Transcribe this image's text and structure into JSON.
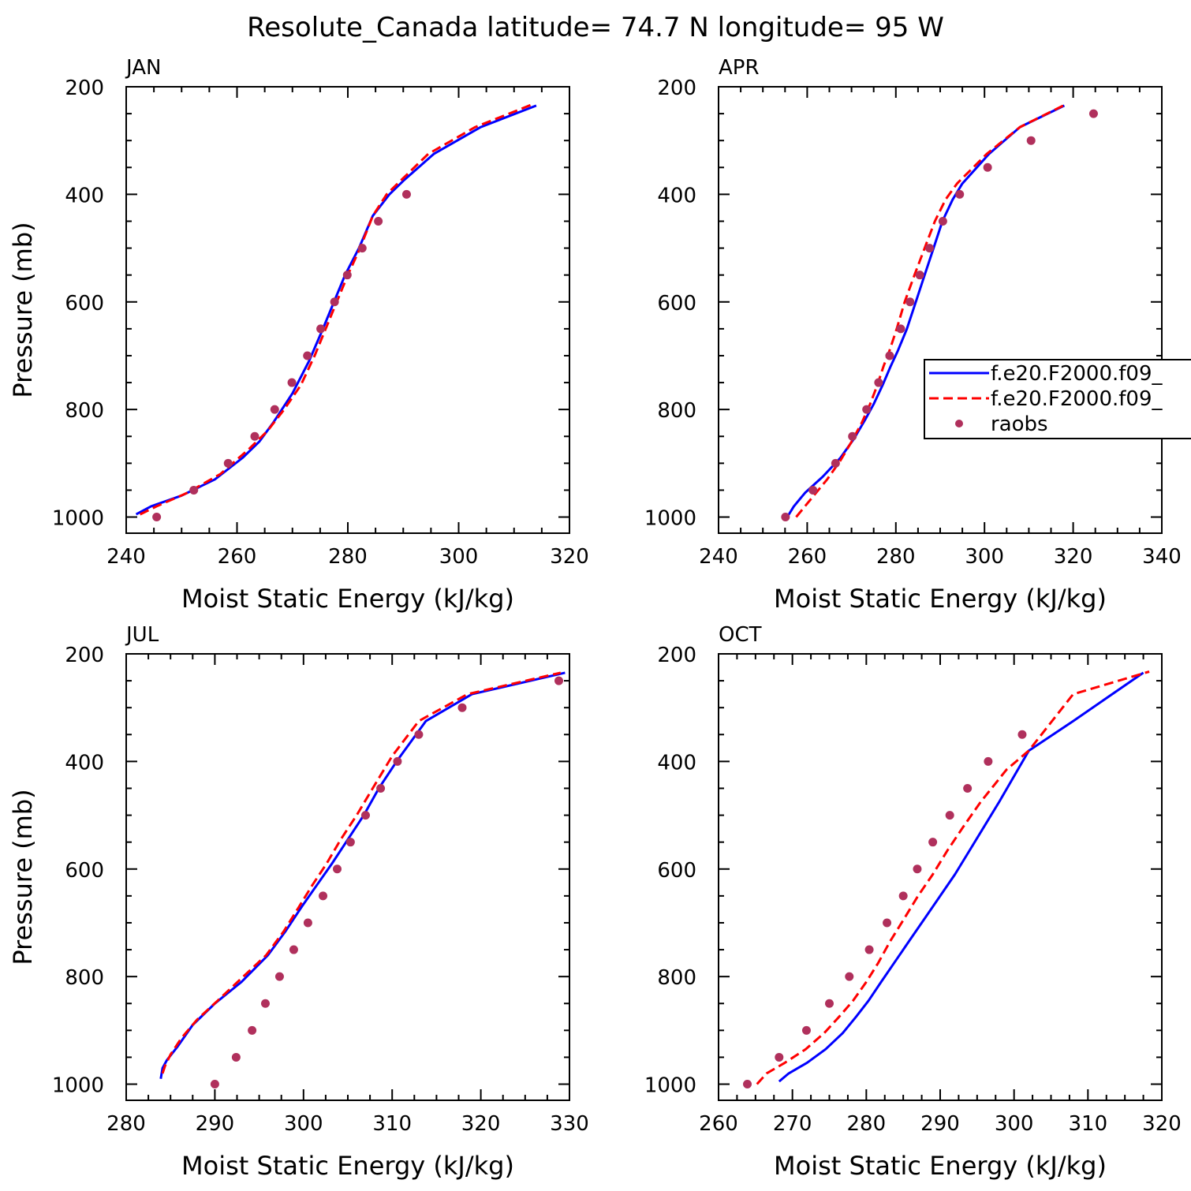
{
  "title": "Resolute_Canada  latitude= 74.7 N longitude= 95 W",
  "colors": {
    "model1": "#0000ff",
    "model2": "#ff0000",
    "raobs": "#b0305c"
  },
  "legend": {
    "entries": [
      {
        "label": "f.e20.F2000.f09_",
        "style": "solid",
        "color": "#0000ff"
      },
      {
        "label": "f.e20.F2000.f09_",
        "style": "dashed",
        "color": "#ff0000"
      },
      {
        "label": "raobs",
        "style": "marker",
        "color": "#b0305c"
      }
    ]
  },
  "chart_data": [
    {
      "type": "line",
      "panel": "JAN",
      "xlabel": "Moist Static Energy (kJ/kg)",
      "ylabel": "Pressure (mb)",
      "xlim": [
        240,
        320
      ],
      "ylim": [
        1030,
        200
      ],
      "xticks": [
        240,
        260,
        280,
        300,
        320
      ],
      "yticks": [
        200,
        400,
        600,
        800,
        1000
      ],
      "series": [
        {
          "name": "f.e20.F2000.f09_",
          "style": "solid",
          "x": [
            241.8,
            244.5,
            250,
            256,
            261,
            264,
            266.5,
            270,
            273,
            275.5,
            277.5,
            279.5,
            282,
            284.5,
            287.5,
            290,
            295.5,
            304,
            314
          ],
          "y": [
            995,
            980,
            960,
            930,
            890,
            860,
            825,
            770,
            710,
            650,
            600,
            550,
            500,
            440,
            400,
            375,
            325,
            275,
            235
          ]
        },
        {
          "name": "f.e20.F2000.f09_",
          "style": "dashed",
          "x": [
            242.5,
            245.5,
            251,
            257,
            262,
            265.5,
            268.5,
            271.5,
            274,
            276,
            278,
            280,
            282.2,
            284.5,
            287,
            289.5,
            294.5,
            303,
            313.5
          ],
          "y": [
            995,
            980,
            955,
            920,
            875,
            840,
            800,
            755,
            700,
            650,
            600,
            550,
            500,
            440,
            400,
            375,
            325,
            275,
            232
          ]
        },
        {
          "name": "raobs",
          "style": "marker",
          "x": [
            245.5,
            252.2,
            258.4,
            263.2,
            266.8,
            269.9,
            272.7,
            275.1,
            277.6,
            279.9,
            282.6,
            285.5,
            290.6
          ],
          "y": [
            1000,
            950,
            900,
            850,
            800,
            750,
            700,
            650,
            600,
            550,
            500,
            450,
            400
          ]
        }
      ]
    },
    {
      "type": "line",
      "panel": "APR",
      "xlabel": "Moist Static Energy (kJ/kg)",
      "ylabel": "",
      "xlim": [
        240,
        340
      ],
      "ylim": [
        1030,
        200
      ],
      "xticks": [
        240,
        260,
        280,
        300,
        320,
        340
      ],
      "yticks": [
        200,
        400,
        600,
        800,
        1000
      ],
      "series": [
        {
          "name": "f.e20.F2000.f09_",
          "style": "solid",
          "x": [
            255.5,
            257,
            259.5,
            263.5,
            267.5,
            270.5,
            273,
            275,
            277,
            278.8,
            280.5,
            282.5,
            284.5,
            286.5,
            288.5,
            290.5,
            292.8,
            295,
            301,
            308,
            318
          ],
          "y": [
            1000,
            980,
            955,
            925,
            890,
            855,
            820,
            790,
            755,
            720,
            690,
            650,
            600,
            550,
            500,
            450,
            410,
            380,
            325,
            275,
            235
          ]
        },
        {
          "name": "f.e20.F2000.f09_",
          "style": "dashed",
          "x": [
            257.5,
            259,
            261.5,
            264.5,
            267.5,
            270,
            272.3,
            274.2,
            275.8,
            277.2,
            278.6,
            280.2,
            282,
            284.2,
            286.5,
            288.8,
            291.2,
            293.8,
            300.5,
            308,
            318.5
          ],
          "y": [
            1000,
            985,
            960,
            930,
            895,
            860,
            825,
            790,
            755,
            720,
            690,
            650,
            600,
            550,
            500,
            450,
            410,
            380,
            325,
            275,
            232
          ]
        },
        {
          "name": "raobs",
          "style": "marker",
          "x": [
            255.1,
            261.3,
            266.4,
            270.2,
            273.4,
            276.1,
            278.6,
            281.1,
            283.2,
            285.4,
            287.6,
            290.6,
            294.4,
            300.7,
            310.5,
            324.6
          ],
          "y": [
            1000,
            950,
            900,
            850,
            800,
            750,
            700,
            650,
            600,
            550,
            500,
            450,
            400,
            350,
            300,
            250
          ]
        }
      ]
    },
    {
      "type": "line",
      "panel": "JUL",
      "xlabel": "Moist Static Energy (kJ/kg)",
      "ylabel": "Pressure (mb)",
      "xlim": [
        280,
        330
      ],
      "ylim": [
        1030,
        200
      ],
      "xticks": [
        280,
        290,
        300,
        310,
        320,
        330
      ],
      "yticks": [
        200,
        400,
        600,
        800,
        1000
      ],
      "series": [
        {
          "name": "f.e20.F2000.f09_",
          "style": "solid",
          "x": [
            283.9,
            284.1,
            284.6,
            285.8,
            287.5,
            290,
            293,
            296,
            298,
            299.8,
            301.5,
            303.2,
            305,
            306.8,
            308.5,
            310.5,
            313.8,
            319,
            329.5
          ],
          "y": [
            990,
            970,
            955,
            930,
            890,
            850,
            810,
            760,
            715,
            670,
            630,
            590,
            545,
            500,
            450,
            400,
            325,
            275,
            235
          ]
        },
        {
          "name": "f.e20.F2000.f09_",
          "style": "dashed",
          "x": [
            284.1,
            284.4,
            285,
            286.2,
            288,
            290.3,
            293.2,
            295.8,
            297.8,
            299.5,
            301,
            302.6,
            304.2,
            306,
            307.8,
            310,
            313,
            318.5,
            329
          ],
          "y": [
            980,
            965,
            945,
            915,
            880,
            845,
            800,
            760,
            715,
            670,
            630,
            590,
            545,
            500,
            450,
            390,
            325,
            275,
            235
          ]
        },
        {
          "name": "raobs",
          "style": "marker",
          "x": [
            290,
            292.4,
            294.2,
            295.7,
            297.3,
            298.9,
            300.5,
            302.2,
            303.8,
            305.3,
            307,
            308.7,
            310.6,
            313,
            317.9,
            328.8
          ],
          "y": [
            1000,
            950,
            900,
            850,
            800,
            750,
            700,
            650,
            600,
            550,
            500,
            450,
            400,
            350,
            300,
            250
          ]
        }
      ]
    },
    {
      "type": "line",
      "panel": "OCT",
      "xlabel": "Moist Static Energy (kJ/kg)",
      "ylabel": "",
      "xlim": [
        260,
        320
      ],
      "ylim": [
        1030,
        200
      ],
      "xticks": [
        260,
        270,
        280,
        290,
        300,
        310,
        320
      ],
      "yticks": [
        200,
        400,
        600,
        800,
        1000
      ],
      "series": [
        {
          "name": "f.e20.F2000.f09_",
          "style": "solid",
          "x": [
            268.2,
            269.5,
            272,
            274.5,
            276.8,
            278.6,
            280.3,
            282,
            284,
            286,
            288,
            290,
            292,
            294,
            296,
            298,
            302,
            308,
            317.5
          ],
          "y": [
            995,
            980,
            960,
            935,
            905,
            875,
            845,
            810,
            770,
            730,
            690,
            650,
            610,
            565,
            520,
            475,
            380,
            325,
            235
          ]
        },
        {
          "name": "f.e20.F2000.f09_",
          "style": "dashed",
          "x": [
            265.2,
            266.5,
            269,
            271.8,
            274.3,
            276.3,
            278.2,
            280,
            281.6,
            283.2,
            285,
            287,
            289,
            291,
            293.2,
            295.5,
            299,
            302,
            308,
            318.3
          ],
          "y": [
            1000,
            980,
            960,
            935,
            905,
            875,
            845,
            810,
            775,
            735,
            695,
            650,
            610,
            565,
            520,
            475,
            415,
            380,
            275,
            233
          ]
        },
        {
          "name": "raobs",
          "style": "marker",
          "x": [
            263.9,
            268.2,
            271.9,
            275,
            277.7,
            280.4,
            282.8,
            285,
            286.9,
            289,
            291.3,
            293.7,
            296.5,
            301.1
          ],
          "y": [
            1000,
            950,
            900,
            850,
            800,
            750,
            700,
            650,
            600,
            550,
            500,
            450,
            400,
            350
          ]
        }
      ]
    }
  ]
}
